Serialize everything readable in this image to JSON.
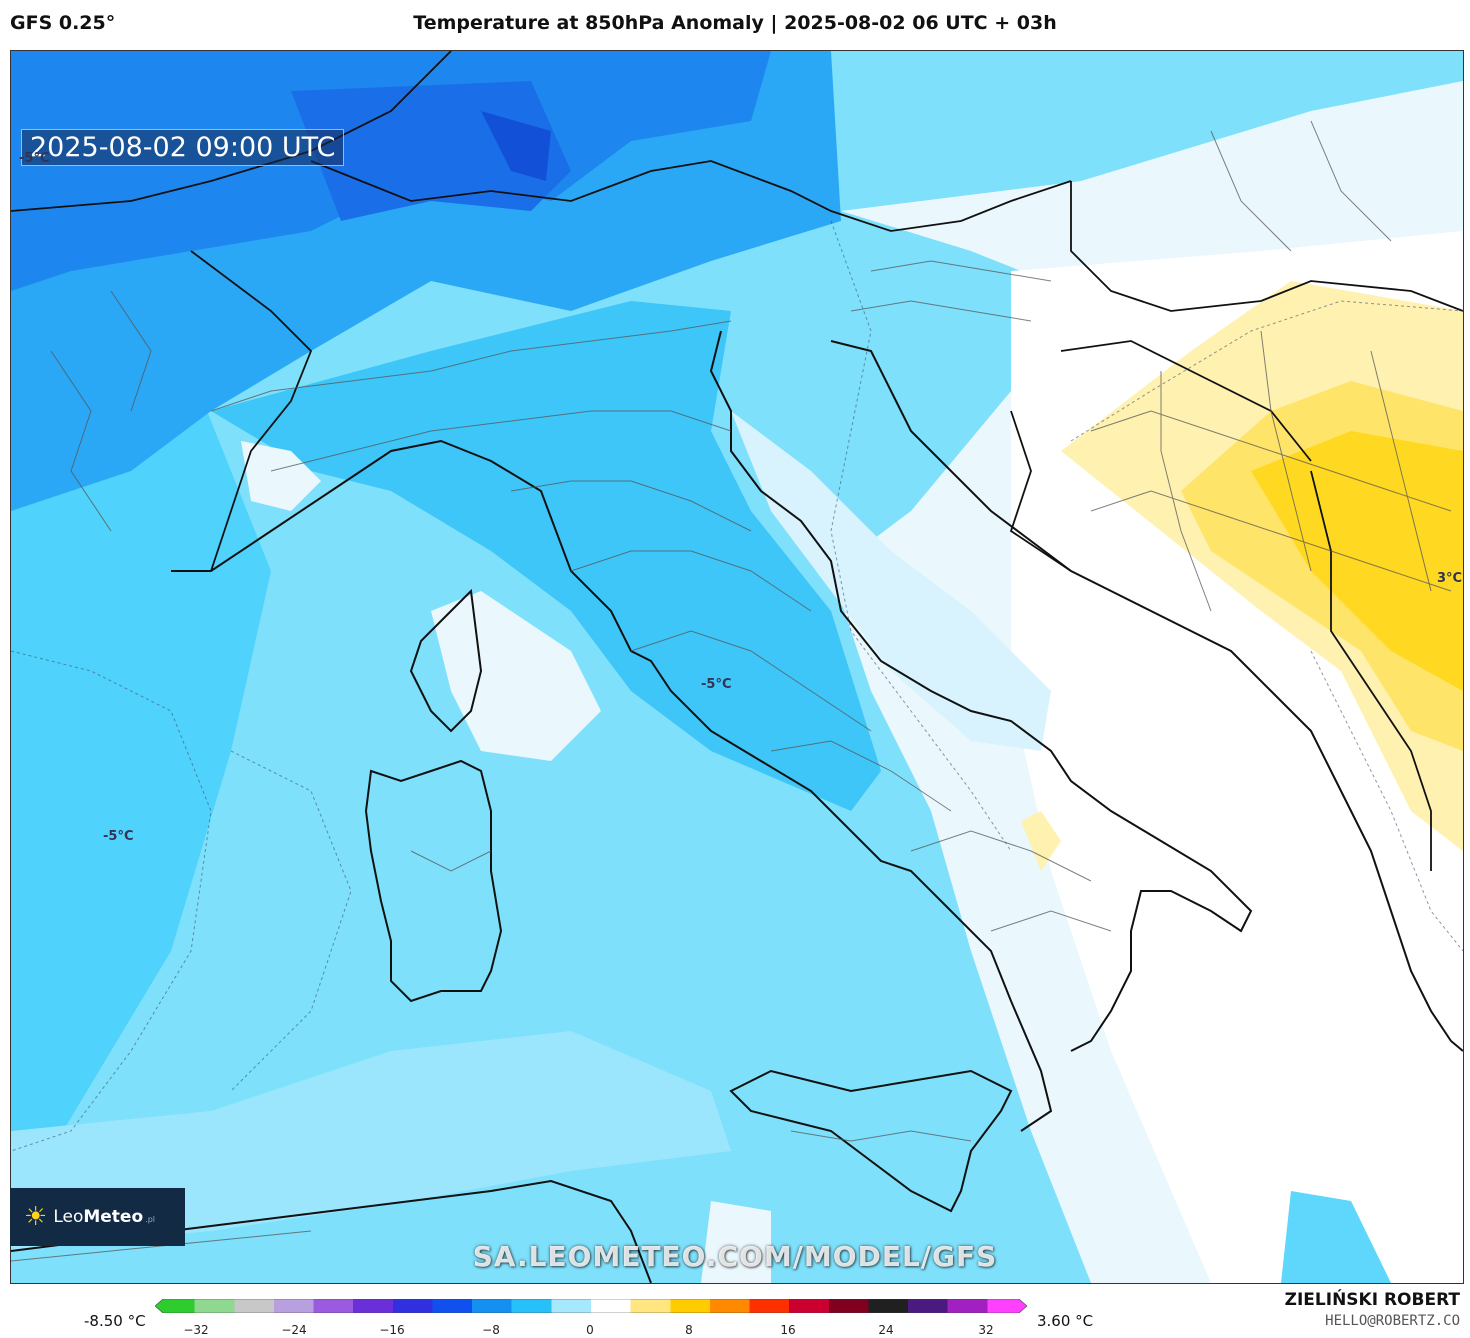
{
  "header": {
    "model": "GFS 0.25°",
    "title": "Temperature at 850hPa Anomaly | 2025-08-02 06 UTC + 03h"
  },
  "map": {
    "valid_time": "2025-08-02 09:00 UTC",
    "contour_labels": [
      "-5°C",
      "-5°C",
      "-5°C",
      "3°C"
    ],
    "watermark": "SA.LEOMETEO.COM/MODEL/GFS",
    "logo": {
      "name_light": "Leo",
      "name_bold": "Meteo",
      "suffix": ".pl",
      "icon": "sun-icon"
    }
  },
  "legend": {
    "min_label": "-8.50 °C",
    "max_label": "3.60 °C",
    "ticks": [
      "−32",
      "−24",
      "−16",
      "−8",
      "0",
      "8",
      "16",
      "24",
      "32"
    ],
    "colors": [
      "#2ecc2e",
      "#8fd88f",
      "#c8c8c8",
      "#b8a0e0",
      "#9a5be0",
      "#6a2fd8",
      "#3030e0",
      "#1050f0",
      "#1690f0",
      "#28c0f8",
      "#a8e8fc",
      "#ffffff",
      "#ffe680",
      "#ffcc00",
      "#ff8a00",
      "#ff3000",
      "#cc0030",
      "#800020",
      "#202020",
      "#4b1a80",
      "#a020c0",
      "#ff40ff"
    ]
  },
  "credits": {
    "author": "ZIELIŃSKI ROBERT",
    "email": "HELLO@ROBERTZ.CO"
  }
}
